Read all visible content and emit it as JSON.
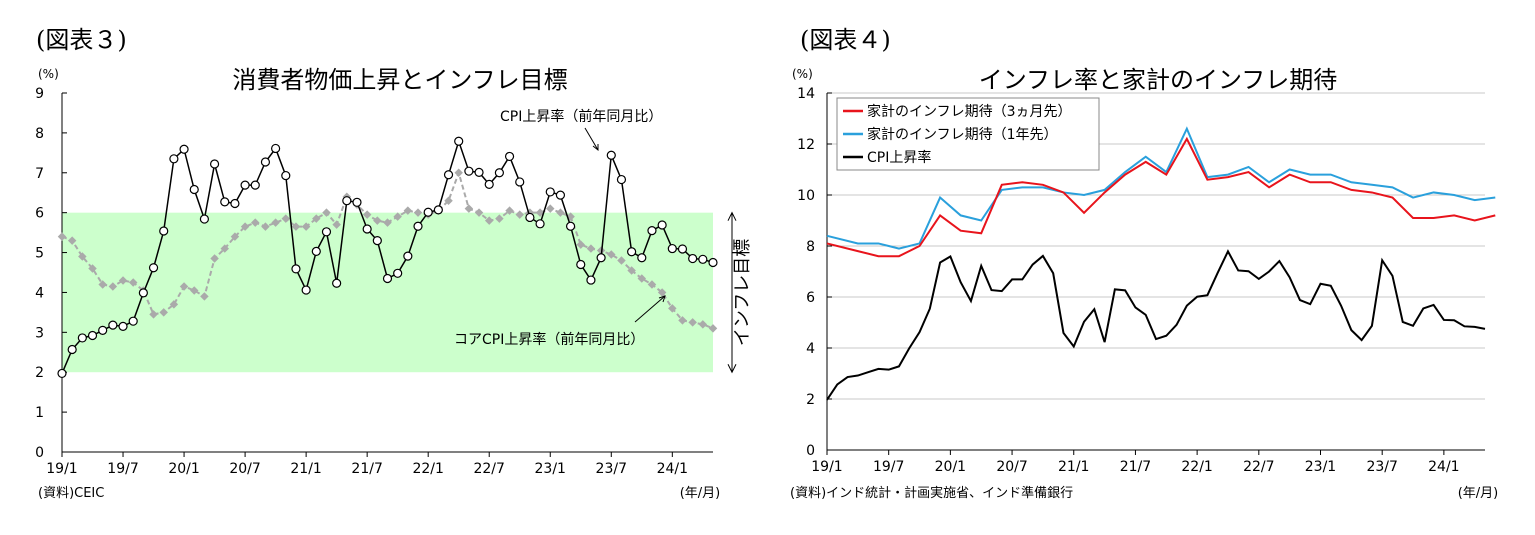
{
  "figures": [
    {
      "label": "(図表３)"
    },
    {
      "label": "(図表４)"
    }
  ],
  "chart_data": [
    {
      "type": "line",
      "title": "消費者物価上昇とインフレ目標",
      "ylabel": "(%)",
      "xlabel": "(年/月)",
      "source": "(資料)CEIC",
      "ylim": [
        0,
        9
      ],
      "yticks": [
        "0",
        "1",
        "2",
        "3",
        "4",
        "5",
        "6",
        "7",
        "8",
        "9"
      ],
      "xticks": [
        "19/1",
        "19/7",
        "20/1",
        "20/7",
        "21/1",
        "21/7",
        "22/1",
        "22/7",
        "23/1",
        "23/7",
        "24/1"
      ],
      "target_band": {
        "low": 2,
        "high": 6,
        "label": "インフレ目標",
        "color": "#ccffcc"
      },
      "grid": false,
      "series": [
        {
          "name": "CPI上昇率（前年同月比）",
          "color": "#000000",
          "marker": "open-circle",
          "values": [
            1.97,
            2.57,
            2.86,
            2.92,
            3.05,
            3.18,
            3.15,
            3.28,
            3.99,
            4.62,
            5.54,
            7.35,
            7.59,
            6.58,
            5.84,
            7.22,
            6.27,
            6.23,
            6.69,
            6.69,
            7.27,
            7.61,
            6.93,
            4.59,
            4.06,
            5.03,
            5.52,
            4.23,
            6.3,
            6.26,
            5.59,
            5.3,
            4.35,
            4.48,
            4.91,
            5.66,
            6.01,
            6.07,
            6.95,
            7.79,
            7.04,
            7.01,
            6.71,
            7.0,
            7.41,
            6.77,
            5.88,
            5.72,
            6.52,
            6.44,
            5.66,
            4.7,
            4.31,
            4.87,
            7.44,
            6.83,
            5.02,
            4.87,
            5.55,
            5.69,
            5.1,
            5.09,
            4.85,
            4.83,
            4.75
          ]
        },
        {
          "name": "コアCPI上昇率（前年同月比）",
          "color": "#aaaaaa",
          "marker": "diamond",
          "dashed": true,
          "values": [
            5.4,
            5.3,
            4.9,
            4.6,
            4.2,
            4.15,
            4.3,
            4.25,
            4.05,
            3.45,
            3.5,
            3.7,
            4.15,
            4.05,
            3.9,
            4.85,
            5.1,
            5.4,
            5.65,
            5.75,
            5.65,
            5.75,
            5.85,
            5.65,
            5.65,
            5.85,
            6.0,
            5.7,
            6.4,
            6.2,
            5.95,
            5.8,
            5.75,
            5.9,
            6.05,
            6.0,
            5.95,
            6.05,
            6.3,
            7.0,
            6.1,
            6.0,
            5.8,
            5.85,
            6.05,
            5.95,
            6.0,
            6.0,
            6.1,
            6.0,
            5.9,
            5.2,
            5.1,
            5.05,
            4.95,
            4.8,
            4.55,
            4.35,
            4.2,
            4.0,
            3.6,
            3.3,
            3.25,
            3.2,
            3.1
          ]
        }
      ],
      "annotations": [
        {
          "text": "CPI上昇率（前年同月比）"
        },
        {
          "text": "コアCPI上昇率（前年同月比）"
        }
      ]
    },
    {
      "type": "line",
      "title": "インフレ率と家計のインフレ期待",
      "ylabel": "(%)",
      "xlabel": "(年/月)",
      "source": "(資料)インド統計・計画実施省、インド準備銀行",
      "ylim": [
        0,
        14
      ],
      "yticks": [
        "0",
        "2",
        "4",
        "6",
        "8",
        "10",
        "12",
        "14"
      ],
      "xticks": [
        "19/1",
        "19/7",
        "20/1",
        "20/7",
        "21/1",
        "21/7",
        "22/1",
        "22/7",
        "23/1",
        "23/7",
        "24/1"
      ],
      "grid": true,
      "legend": "top-left",
      "series": [
        {
          "name": "家計のインフレ期待（3ヵ月先）",
          "color": "#e8141c",
          "points": [
            [
              0,
              8.1
            ],
            [
              3,
              7.8
            ],
            [
              5,
              7.6
            ],
            [
              7,
              7.6
            ],
            [
              9,
              8.0
            ],
            [
              11,
              9.2
            ],
            [
              13,
              8.6
            ],
            [
              15,
              8.5
            ],
            [
              17,
              10.4
            ],
            [
              19,
              10.5
            ],
            [
              21,
              10.4
            ],
            [
              23,
              10.1
            ],
            [
              25,
              9.3
            ],
            [
              27,
              10.1
            ],
            [
              29,
              10.8
            ],
            [
              31,
              11.3
            ],
            [
              33,
              10.8
            ],
            [
              35,
              12.2
            ],
            [
              37,
              10.6
            ],
            [
              39,
              10.7
            ],
            [
              41,
              10.9
            ],
            [
              43,
              10.3
            ],
            [
              45,
              10.8
            ],
            [
              47,
              10.5
            ],
            [
              49,
              10.5
            ],
            [
              51,
              10.2
            ],
            [
              53,
              10.1
            ],
            [
              55,
              9.9
            ],
            [
              57,
              9.1
            ],
            [
              59,
              9.1
            ],
            [
              61,
              9.2
            ],
            [
              63,
              9.0
            ],
            [
              65,
              9.2
            ]
          ]
        },
        {
          "name": "家計のインフレ期待（1年先）",
          "color": "#2aa0dc",
          "points": [
            [
              0,
              8.4
            ],
            [
              3,
              8.1
            ],
            [
              5,
              8.1
            ],
            [
              7,
              7.9
            ],
            [
              9,
              8.1
            ],
            [
              11,
              9.9
            ],
            [
              13,
              9.2
            ],
            [
              15,
              9.0
            ],
            [
              17,
              10.2
            ],
            [
              19,
              10.3
            ],
            [
              21,
              10.3
            ],
            [
              23,
              10.1
            ],
            [
              25,
              10.0
            ],
            [
              27,
              10.2
            ],
            [
              29,
              10.9
            ],
            [
              31,
              11.5
            ],
            [
              33,
              10.9
            ],
            [
              35,
              12.6
            ],
            [
              37,
              10.7
            ],
            [
              39,
              10.8
            ],
            [
              41,
              11.1
            ],
            [
              43,
              10.5
            ],
            [
              45,
              11.0
            ],
            [
              47,
              10.8
            ],
            [
              49,
              10.8
            ],
            [
              51,
              10.5
            ],
            [
              53,
              10.4
            ],
            [
              55,
              10.3
            ],
            [
              57,
              9.9
            ],
            [
              59,
              10.1
            ],
            [
              61,
              10.0
            ],
            [
              63,
              9.8
            ],
            [
              65,
              9.9
            ]
          ]
        },
        {
          "name": "CPI上昇率",
          "color": "#000000",
          "values": [
            1.97,
            2.57,
            2.86,
            2.92,
            3.05,
            3.18,
            3.15,
            3.28,
            3.99,
            4.62,
            5.54,
            7.35,
            7.59,
            6.58,
            5.84,
            7.22,
            6.27,
            6.23,
            6.69,
            6.69,
            7.27,
            7.61,
            6.93,
            4.59,
            4.06,
            5.03,
            5.52,
            4.23,
            6.3,
            6.26,
            5.59,
            5.3,
            4.35,
            4.48,
            4.91,
            5.66,
            6.01,
            6.07,
            6.95,
            7.79,
            7.04,
            7.01,
            6.71,
            7.0,
            7.41,
            6.77,
            5.88,
            5.72,
            6.52,
            6.44,
            5.66,
            4.7,
            4.31,
            4.87,
            7.44,
            6.83,
            5.02,
            4.87,
            5.55,
            5.69,
            5.1,
            5.09,
            4.85,
            4.83,
            4.75
          ]
        }
      ]
    }
  ]
}
